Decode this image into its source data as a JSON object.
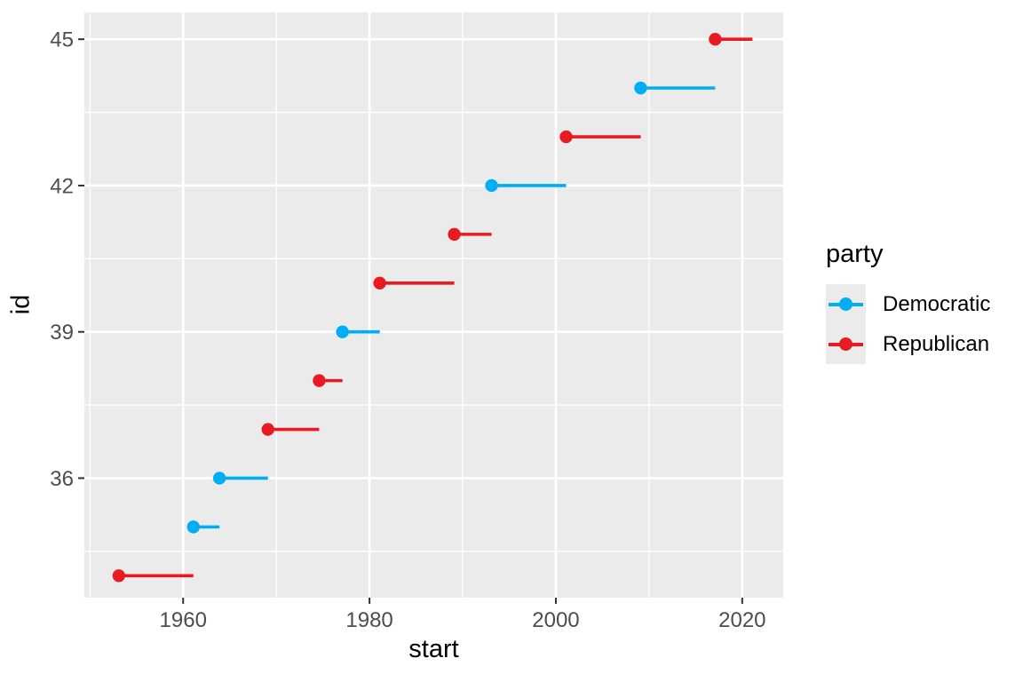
{
  "chart_data": {
    "type": "scatter",
    "mark": "point-with-segment",
    "title": "",
    "xlabel": "start",
    "ylabel": "id",
    "x_ticks": [
      1960,
      1980,
      2000,
      2020
    ],
    "x_minor_ticks": [
      1950,
      1970,
      1990,
      2010
    ],
    "y_ticks": [
      36,
      39,
      42,
      45
    ],
    "y_minor_ticks": [
      34.5,
      37.5,
      40.5,
      43.5
    ],
    "xlim": [
      1949.4,
      2024.4
    ],
    "ylim": [
      33.55,
      45.55
    ],
    "grid": "on",
    "panel_fill": "#EBEBEB",
    "grid_color": "#FFFFFF",
    "tick_label_color": "#4D4D4D",
    "tick_mark_color": "#333333",
    "legend": {
      "title": "party",
      "position": "right",
      "items": [
        {
          "label": "Democratic",
          "color": "#00AEF3"
        },
        {
          "label": "Republican",
          "color": "#E81B23"
        }
      ]
    },
    "series": [
      {
        "id": 34,
        "party": "Republican",
        "start": 1953.1,
        "end": 1961.1
      },
      {
        "id": 35,
        "party": "Democratic",
        "start": 1961.1,
        "end": 1963.9
      },
      {
        "id": 36,
        "party": "Democratic",
        "start": 1963.9,
        "end": 1969.1
      },
      {
        "id": 37,
        "party": "Republican",
        "start": 1969.1,
        "end": 1974.6
      },
      {
        "id": 38,
        "party": "Republican",
        "start": 1974.6,
        "end": 1977.1
      },
      {
        "id": 39,
        "party": "Democratic",
        "start": 1977.1,
        "end": 1981.1
      },
      {
        "id": 40,
        "party": "Republican",
        "start": 1981.1,
        "end": 1989.1
      },
      {
        "id": 41,
        "party": "Republican",
        "start": 1989.1,
        "end": 1993.1
      },
      {
        "id": 42,
        "party": "Democratic",
        "start": 1993.1,
        "end": 2001.1
      },
      {
        "id": 43,
        "party": "Republican",
        "start": 2001.1,
        "end": 2009.1
      },
      {
        "id": 44,
        "party": "Democratic",
        "start": 2009.1,
        "end": 2017.1
      },
      {
        "id": 45,
        "party": "Republican",
        "start": 2017.1,
        "end": 2021.1
      }
    ]
  }
}
